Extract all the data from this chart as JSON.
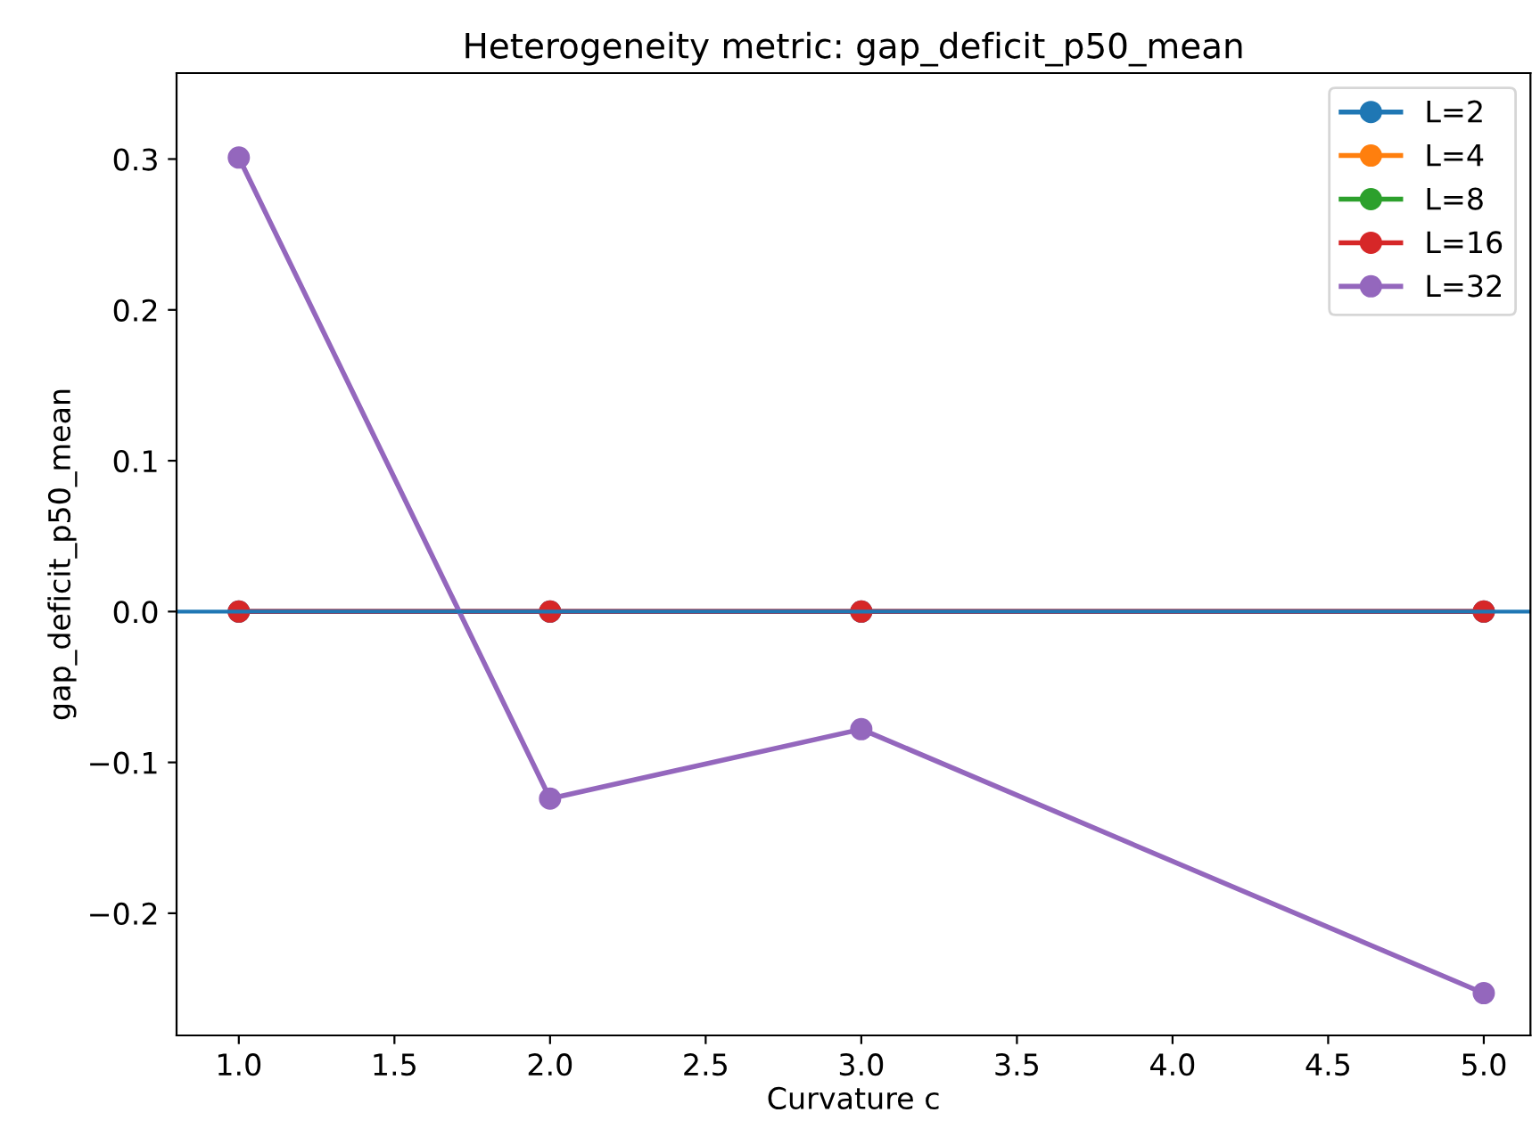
{
  "chart_data": {
    "type": "line",
    "title": "Heterogeneity metric: gap_deficit_p50_mean",
    "xlabel": "Curvature c",
    "ylabel": "gap_deficit_p50_mean",
    "x": [
      1,
      2,
      3,
      5
    ],
    "series": [
      {
        "name": "L=2",
        "color": "#1f77b4",
        "values": [
          0,
          0,
          0,
          0
        ]
      },
      {
        "name": "L=4",
        "color": "#ff7f0e",
        "values": [
          null,
          null,
          null,
          null
        ]
      },
      {
        "name": "L=8",
        "color": "#2ca02c",
        "values": [
          null,
          null,
          null,
          null
        ]
      },
      {
        "name": "L=16",
        "color": "#d62728",
        "values": [
          0,
          0,
          0,
          0
        ]
      },
      {
        "name": "L=32",
        "color": "#9467bd",
        "values": [
          0.301,
          -0.124,
          -0.078,
          -0.253
        ]
      }
    ],
    "ref_lines": [
      {
        "axis": "y",
        "value": 0,
        "color": "#1f77b4"
      }
    ],
    "xlim": [
      0.8,
      5.15
    ],
    "xticks": [
      {
        "value": 1,
        "label": "1.0"
      },
      {
        "value": 1.5,
        "label": "1.5"
      },
      {
        "value": 2,
        "label": "2.0"
      },
      {
        "value": 2.5,
        "label": "2.5"
      },
      {
        "value": 3,
        "label": "3.0"
      },
      {
        "value": 3.5,
        "label": "3.5"
      },
      {
        "value": 4,
        "label": "4.0"
      },
      {
        "value": 4.5,
        "label": "4.5"
      },
      {
        "value": 5,
        "label": "5.0"
      }
    ],
    "ylim": [
      -0.281,
      0.357
    ],
    "yticks": [
      {
        "value": -0.2,
        "label": "−0.2"
      },
      {
        "value": -0.1,
        "label": "−0.1"
      },
      {
        "value": 0,
        "label": "0.0"
      },
      0.1,
      0.2,
      0.3
    ],
    "marker": "circle",
    "line_style": "solid",
    "grid": false,
    "legend": "top right"
  }
}
